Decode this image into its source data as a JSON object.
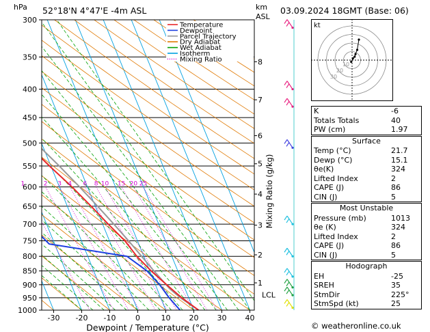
{
  "header": {
    "left_title": "52°18'N  4°47'E  -4m  ASL",
    "right_title": "03.09.2024  18GMT  (Base: 06)",
    "hpa_label": "hPa",
    "km_label": "km",
    "asl_label": "ASL"
  },
  "chart_data": {
    "type": "skew-t",
    "xlabel": "Dewpoint / Temperature (°C)",
    "ylabel_right": "Mixing Ratio (g/kg)",
    "pressure_levels": [
      300,
      350,
      400,
      450,
      500,
      550,
      600,
      650,
      700,
      750,
      800,
      850,
      900,
      950,
      1000
    ],
    "temp_ticks": [
      -30,
      -20,
      -10,
      0,
      10,
      20,
      30,
      40
    ],
    "km_ticks": [
      {
        "km": "8",
        "p": 357
      },
      {
        "km": "7",
        "p": 418
      },
      {
        "km": "6",
        "p": 485
      },
      {
        "km": "5",
        "p": 545
      },
      {
        "km": "4",
        "p": 618
      },
      {
        "km": "3",
        "p": 703
      },
      {
        "km": "2",
        "p": 795
      },
      {
        "km": "1",
        "p": 893
      }
    ],
    "lcl_label": "LCL",
    "lcl_pressure": 915,
    "mixing_ratio_labels": [
      "1",
      "2",
      "3",
      "4",
      "6",
      "8",
      "10",
      "15",
      "20",
      "25"
    ],
    "mixing_ratio_values": [
      1,
      2,
      3,
      4,
      6,
      8,
      10,
      15,
      20,
      25
    ],
    "legend": [
      {
        "name": "Temperature",
        "color": "#e8262a",
        "style": "solid"
      },
      {
        "name": "Dewpoint",
        "color": "#1c3fe0",
        "style": "solid"
      },
      {
        "name": "Parcel Trajectory",
        "color": "#999999",
        "style": "solid"
      },
      {
        "name": "Dry Adiabat",
        "color": "#e07800",
        "style": "solid"
      },
      {
        "name": "Wet Adiabat",
        "color": "#00a000",
        "style": "solid"
      },
      {
        "name": "Isotherm",
        "color": "#00a0e0",
        "style": "solid"
      },
      {
        "name": "Mixing Ratio",
        "color": "#d000d0",
        "style": "dotted"
      }
    ],
    "temperature": [
      {
        "p": 1000,
        "t": 21.7
      },
      {
        "p": 950,
        "t": 17.5
      },
      {
        "p": 900,
        "t": 14.0
      },
      {
        "p": 850,
        "t": 10.5
      },
      {
        "p": 800,
        "t": 7.5
      },
      {
        "p": 750,
        "t": 5.5
      },
      {
        "p": 700,
        "t": 2.0
      },
      {
        "p": 650,
        "t": -1.5
      },
      {
        "p": 600,
        "t": -5.5
      },
      {
        "p": 550,
        "t": -10.5
      },
      {
        "p": 500,
        "t": -15.5
      },
      {
        "p": 450,
        "t": -21.5
      },
      {
        "p": 400,
        "t": -28.5
      },
      {
        "p": 350,
        "t": -36.0
      },
      {
        "p": 300,
        "t": -45.0
      }
    ],
    "dewpoint": [
      {
        "p": 1000,
        "t": 15.1
      },
      {
        "p": 950,
        "t": 13.0
      },
      {
        "p": 900,
        "t": 11.5
      },
      {
        "p": 850,
        "t": 9.0
      },
      {
        "p": 800,
        "t": 4.0
      },
      {
        "p": 760,
        "t": -22.0
      },
      {
        "p": 700,
        "t": -26.0
      },
      {
        "p": 650,
        "t": -32.0
      },
      {
        "p": 600,
        "t": -37.0
      },
      {
        "p": 550,
        "t": -30.0
      },
      {
        "p": 500,
        "t": -30.0
      },
      {
        "p": 450,
        "t": -32.0
      },
      {
        "p": 400,
        "t": -45.0
      },
      {
        "p": 350,
        "t": -48.0
      },
      {
        "p": 300,
        "t": -54.0
      }
    ],
    "parcel": [
      {
        "p": 1000,
        "t": 21.7
      },
      {
        "p": 950,
        "t": 17.0
      },
      {
        "p": 915,
        "t": 14.5
      },
      {
        "p": 850,
        "t": 11.5
      },
      {
        "p": 800,
        "t": 9.2
      },
      {
        "p": 750,
        "t": 6.8
      },
      {
        "p": 700,
        "t": 4.0
      },
      {
        "p": 650,
        "t": 0.8
      },
      {
        "p": 600,
        "t": -2.8
      },
      {
        "p": 550,
        "t": -7.0
      },
      {
        "p": 500,
        "t": -12.0
      },
      {
        "p": 450,
        "t": -18.0
      },
      {
        "p": 400,
        "t": -25.0
      },
      {
        "p": 350,
        "t": -33.0
      },
      {
        "p": 300,
        "t": -43.0
      }
    ],
    "ylim": [
      300,
      1000
    ],
    "xlim": [
      -40,
      40
    ]
  },
  "hodograph": {
    "label": "kt",
    "ring_labels": [
      "10",
      "20",
      "30"
    ],
    "trace_kt": [
      [
        -1,
        -2
      ],
      [
        1,
        2
      ],
      [
        3,
        4
      ],
      [
        4,
        7
      ],
      [
        6,
        12
      ],
      [
        8,
        24
      ]
    ]
  },
  "indices": {
    "top": [
      {
        "label": "K",
        "value": "-6"
      },
      {
        "label": "Totals Totals",
        "value": "40"
      },
      {
        "label": "PW (cm)",
        "value": "1.97"
      }
    ],
    "surface": {
      "title": "Surface",
      "rows": [
        {
          "label": "Temp (°C)",
          "value": "21.7"
        },
        {
          "label": "Dewp (°C)",
          "value": "15.1"
        },
        {
          "label": "θe(K)",
          "value": "324"
        },
        {
          "label": "Lifted Index",
          "value": "2"
        },
        {
          "label": "CAPE (J)",
          "value": "86"
        },
        {
          "label": "CIN (J)",
          "value": "5"
        }
      ]
    },
    "most_unstable": {
      "title": "Most Unstable",
      "rows": [
        {
          "label": "Pressure (mb)",
          "value": "1013"
        },
        {
          "label": "θe (K)",
          "value": "324"
        },
        {
          "label": "Lifted Index",
          "value": "2"
        },
        {
          "label": "CAPE (J)",
          "value": "86"
        },
        {
          "label": "CIN (J)",
          "value": "5"
        }
      ]
    },
    "hodograph": {
      "title": "Hodograph",
      "rows": [
        {
          "label": "EH",
          "value": "-25"
        },
        {
          "label": "SREH",
          "value": "35"
        },
        {
          "label": "StmDir",
          "value": "225°"
        },
        {
          "label": "StmSpd (kt)",
          "value": "25"
        }
      ]
    }
  },
  "copyright": "© weatheronline.co.uk",
  "colors": {
    "temperature": "#e8262a",
    "dewpoint": "#1c3fe0",
    "parcel": "#999999",
    "dry_adiabat": "#e07800",
    "wet_adiabat": "#00a000",
    "isotherm": "#00a0e0",
    "mixing_ratio": "#d000d0"
  }
}
